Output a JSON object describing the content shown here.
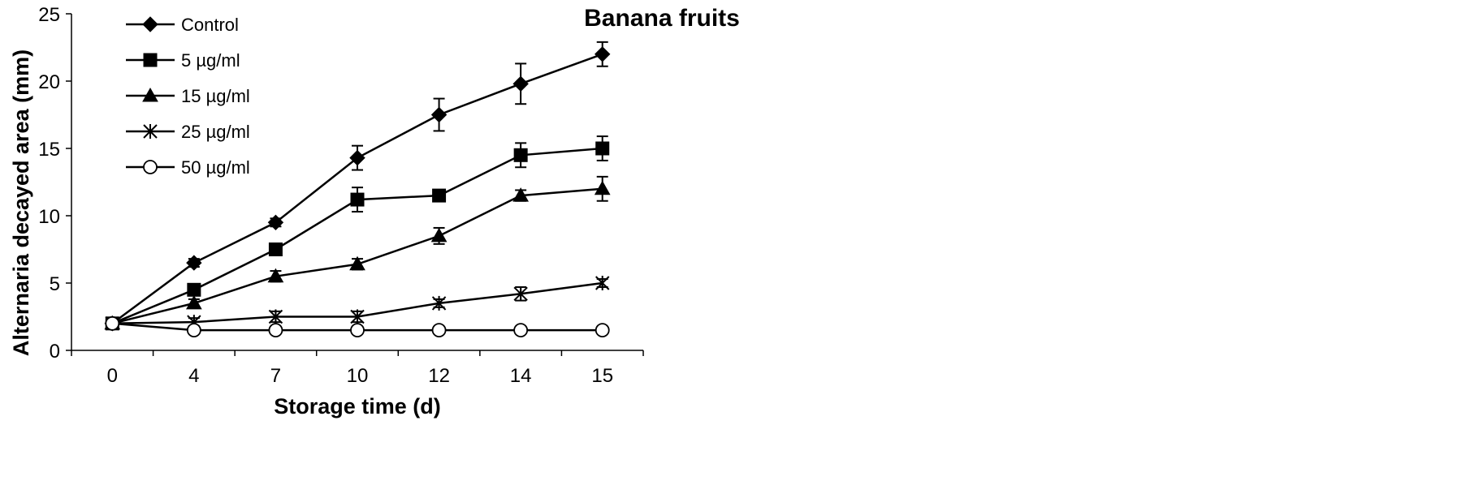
{
  "chart_data": {
    "type": "line",
    "title": "Banana fruits",
    "xlabel": "Storage time (d)",
    "ylabel": "Alternaria decayed area (mm)",
    "categories": [
      "0",
      "4",
      "7",
      "10",
      "12",
      "14",
      "15"
    ],
    "ylim": [
      0,
      25
    ],
    "yticks": [
      0,
      5,
      10,
      15,
      20,
      25
    ],
    "grid": false,
    "legend_position": "top-left",
    "series": [
      {
        "name": "Control",
        "marker": "diamond-filled",
        "values": [
          2.0,
          6.5,
          9.5,
          14.3,
          17.5,
          19.8,
          22.0
        ],
        "errors": [
          0.2,
          0.3,
          0.3,
          0.9,
          1.2,
          1.5,
          0.9
        ]
      },
      {
        "name": "5 µg/ml",
        "marker": "square-filled",
        "values": [
          2.0,
          4.5,
          7.5,
          11.2,
          11.5,
          14.5,
          15.0
        ],
        "errors": [
          0.2,
          0.3,
          0.3,
          0.9,
          0.3,
          0.9,
          0.9
        ]
      },
      {
        "name": "15 µg/ml",
        "marker": "triangle-filled",
        "values": [
          2.0,
          3.5,
          5.5,
          6.4,
          8.5,
          11.5,
          12.0
        ],
        "errors": [
          0.2,
          0.3,
          0.4,
          0.4,
          0.6,
          0.4,
          0.9
        ]
      },
      {
        "name": "25 µg/ml",
        "marker": "asterisk",
        "values": [
          2.0,
          2.1,
          2.5,
          2.5,
          3.5,
          4.2,
          5.0
        ],
        "errors": [
          0.2,
          0.3,
          0.4,
          0.4,
          0.3,
          0.5,
          0.3
        ]
      },
      {
        "name": "50 µg/ml",
        "marker": "circle-open",
        "values": [
          2.0,
          1.5,
          1.5,
          1.5,
          1.5,
          1.5,
          1.5
        ],
        "errors": [
          0.1,
          0.1,
          0.1,
          0.1,
          0.1,
          0.1,
          0.1
        ]
      }
    ],
    "colors": {
      "line": "#000000",
      "marker_fill": "#000000",
      "open_marker_fill": "#ffffff"
    }
  }
}
